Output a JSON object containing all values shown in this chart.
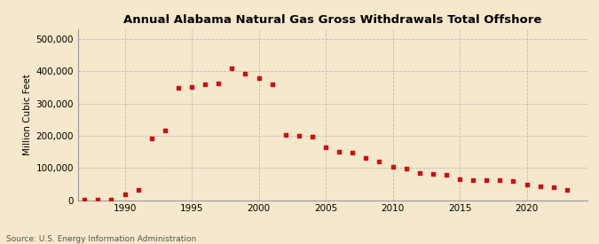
{
  "title": "Annual Alabama Natural Gas Gross Withdrawals Total Offshore",
  "ylabel": "Million Cubic Feet",
  "source": "Source: U.S. Energy Information Administration",
  "background_color": "#f5e8cc",
  "plot_bg_color": "#f5e8cc",
  "marker_color": "#cc1111",
  "grid_color": "#bbbbbb",
  "years": [
    1987,
    1988,
    1989,
    1990,
    1991,
    1992,
    1993,
    1994,
    1995,
    1996,
    1997,
    1998,
    1999,
    2000,
    2001,
    2002,
    2003,
    2004,
    2005,
    2006,
    2007,
    2008,
    2009,
    2010,
    2011,
    2012,
    2013,
    2014,
    2015,
    2016,
    2017,
    2018,
    2019,
    2020,
    2021,
    2022,
    2023
  ],
  "values": [
    500,
    500,
    1000,
    18000,
    33000,
    190000,
    217000,
    349000,
    352000,
    360000,
    362000,
    408000,
    393000,
    378000,
    360000,
    202000,
    200000,
    197000,
    163000,
    149000,
    147000,
    130000,
    120000,
    104000,
    97000,
    83000,
    81000,
    78000,
    65000,
    63000,
    62000,
    61000,
    60000,
    48000,
    44000,
    40000,
    33000
  ],
  "ylim": [
    0,
    530000
  ],
  "yticks": [
    0,
    100000,
    200000,
    300000,
    400000,
    500000
  ],
  "xlim": [
    1986.5,
    2024.5
  ],
  "xticks": [
    1990,
    1995,
    2000,
    2005,
    2010,
    2015,
    2020
  ]
}
